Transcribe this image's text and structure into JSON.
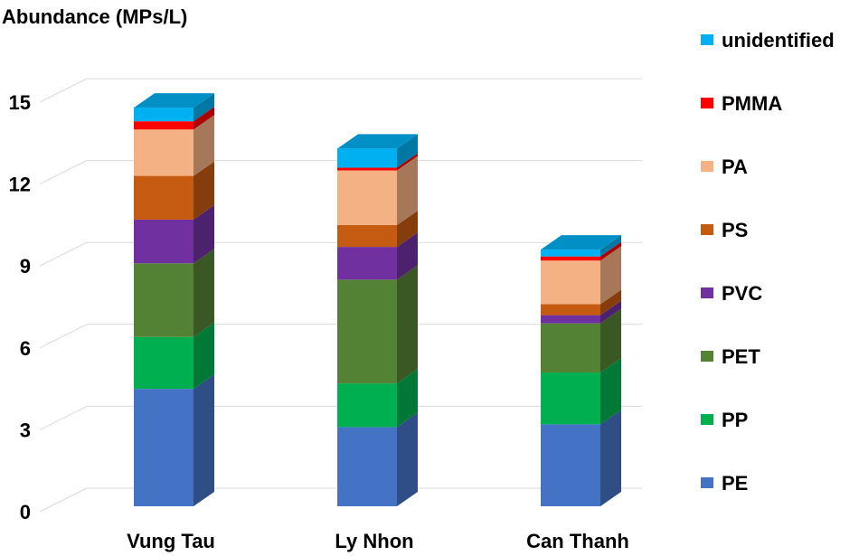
{
  "chart_data": {
    "type": "bar",
    "stacked": true,
    "three_d": true,
    "title": "Abundance (MPs/L)",
    "xlabel": "",
    "ylabel": "",
    "categories": [
      "Vung Tau",
      "Ly Nhon",
      "Can Thanh"
    ],
    "ylim": [
      0,
      15
    ],
    "yticks": [
      "0",
      "3",
      "6",
      "9",
      "12",
      "15"
    ],
    "grid": true,
    "legend_position": "right",
    "series": [
      {
        "name": "PE",
        "color": "#4472C4",
        "values": [
          4.3,
          2.9,
          3.0
        ]
      },
      {
        "name": "PP",
        "color": "#00B050",
        "values": [
          1.9,
          1.6,
          1.9
        ]
      },
      {
        "name": "PET",
        "color": "#548235",
        "values": [
          2.7,
          3.8,
          1.8
        ]
      },
      {
        "name": "PVC",
        "color": "#7030A0",
        "values": [
          1.6,
          1.2,
          0.3
        ]
      },
      {
        "name": "PS",
        "color": "#C55A11",
        "values": [
          1.6,
          0.8,
          0.4
        ]
      },
      {
        "name": "PA",
        "color": "#F4B183",
        "values": [
          1.7,
          2.0,
          1.6
        ]
      },
      {
        "name": "PMMA",
        "color": "#FF0000",
        "values": [
          0.3,
          0.1,
          0.15
        ]
      },
      {
        "name": "unidentified",
        "color": "#00B0F0",
        "values": [
          0.5,
          0.7,
          0.25
        ]
      }
    ]
  }
}
